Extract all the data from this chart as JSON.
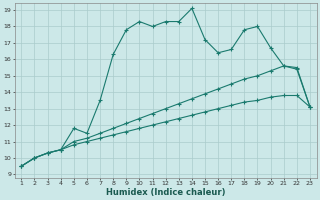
{
  "xlabel": "Humidex (Indice chaleur)",
  "bg_color": "#cce8e8",
  "grid_color": "#aacccc",
  "line_color": "#1a7a6e",
  "line1_x": [
    1,
    2,
    3,
    4,
    5,
    6,
    7,
    8,
    9,
    10,
    11,
    12,
    13,
    14,
    15,
    16,
    17,
    18,
    19,
    20,
    21,
    22,
    23
  ],
  "line1_y": [
    9.5,
    10.0,
    10.3,
    10.5,
    11.8,
    11.5,
    13.5,
    16.3,
    17.8,
    18.3,
    18.0,
    18.3,
    18.3,
    19.1,
    17.2,
    16.4,
    16.6,
    17.8,
    18.0,
    16.7,
    15.6,
    15.4,
    13.1
  ],
  "line2_x": [
    1,
    2,
    3,
    4,
    5,
    6,
    7,
    8,
    9,
    10,
    11,
    12,
    13,
    14,
    15,
    16,
    17,
    18,
    19,
    20,
    21,
    22,
    23
  ],
  "line2_y": [
    9.5,
    10.0,
    10.3,
    10.5,
    11.0,
    11.2,
    11.5,
    11.8,
    12.1,
    12.4,
    12.7,
    13.0,
    13.3,
    13.6,
    13.9,
    14.2,
    14.5,
    14.8,
    15.0,
    15.3,
    15.6,
    15.5,
    13.1
  ],
  "line3_x": [
    1,
    2,
    3,
    4,
    5,
    6,
    7,
    8,
    9,
    10,
    11,
    12,
    13,
    14,
    15,
    16,
    17,
    18,
    19,
    20,
    21,
    22,
    23
  ],
  "line3_y": [
    9.5,
    10.0,
    10.3,
    10.5,
    10.8,
    11.0,
    11.2,
    11.4,
    11.6,
    11.8,
    12.0,
    12.2,
    12.4,
    12.6,
    12.8,
    13.0,
    13.2,
    13.4,
    13.5,
    13.7,
    13.8,
    13.8,
    13.1
  ],
  "yticks": [
    9,
    10,
    11,
    12,
    13,
    14,
    15,
    16,
    17,
    18,
    19
  ],
  "xticks": [
    1,
    2,
    3,
    4,
    5,
    6,
    7,
    8,
    9,
    10,
    11,
    12,
    13,
    14,
    15,
    16,
    17,
    18,
    19,
    20,
    21,
    22,
    23
  ],
  "ylim": [
    8.8,
    19.4
  ],
  "xlim": [
    0.5,
    23.5
  ]
}
